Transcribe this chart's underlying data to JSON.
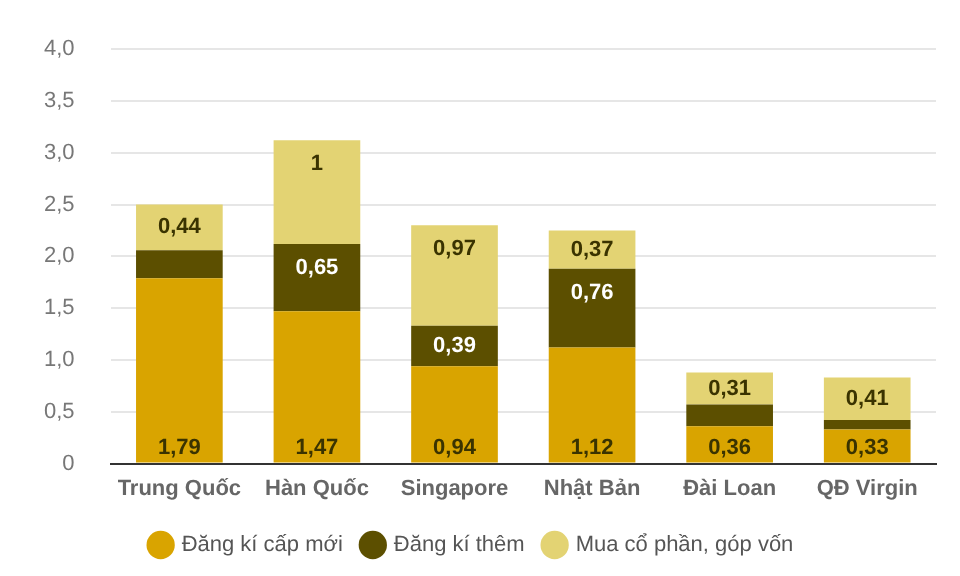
{
  "chart_data": {
    "type": "bar",
    "stacked": true,
    "categories": [
      "Trung Quốc",
      "Hàn Quốc",
      "Singapore",
      "Nhật Bản",
      "Đài Loan",
      "QĐ Virgin"
    ],
    "series": [
      {
        "name": "Đăng kí cấp mới",
        "color": "#d9a400",
        "values": [
          1.79,
          1.47,
          0.94,
          1.12,
          0.36,
          0.33
        ],
        "value_labels": [
          "1,79",
          "1,47",
          "0,94",
          "1,12",
          "0,36",
          "0,33"
        ]
      },
      {
        "name": "Đăng kí thêm",
        "color": "#5c4f00",
        "values": [
          0.27,
          0.65,
          0.39,
          0.76,
          0.21,
          0.09
        ],
        "value_labels": [
          null,
          "0,65",
          "0,39",
          "0,76",
          null,
          null
        ]
      },
      {
        "name": "Mua cổ phần, góp vốn",
        "color": "#e3d373",
        "values": [
          0.44,
          1,
          0.97,
          0.37,
          0.31,
          0.41
        ],
        "value_labels": [
          "0,44",
          "1",
          "0,97",
          "0,37",
          "0,31",
          "0,41"
        ]
      }
    ],
    "ylim": [
      0,
      4
    ],
    "yticks": [
      {
        "value": 0,
        "label": "0"
      },
      {
        "value": 0.5,
        "label": "0,5"
      },
      {
        "value": 1,
        "label": "1,0"
      },
      {
        "value": 1.5,
        "label": "1,5"
      },
      {
        "value": 2,
        "label": "2,0"
      },
      {
        "value": 2.5,
        "label": "2,5"
      },
      {
        "value": 3,
        "label": "3,0"
      },
      {
        "value": 3.5,
        "label": "3,5"
      },
      {
        "value": 4,
        "label": "4,0"
      }
    ],
    "grid": "y",
    "legend": "bottom"
  }
}
